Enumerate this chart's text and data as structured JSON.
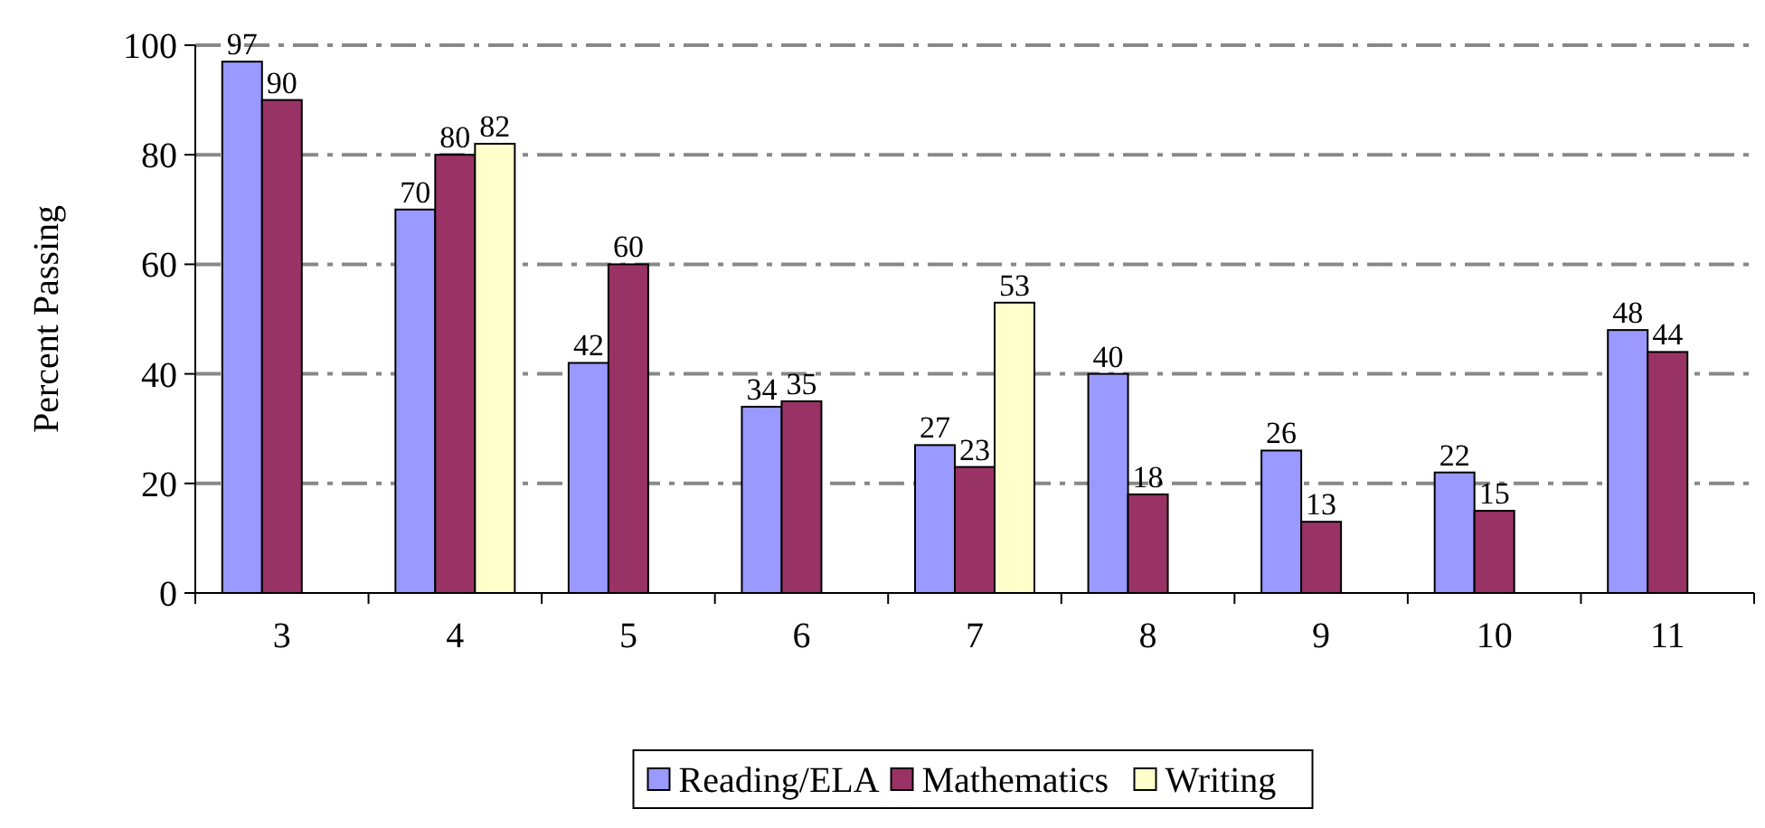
{
  "chart_data": {
    "type": "bar",
    "ylabel": "Percent Passing",
    "categories": [
      "3",
      "4",
      "5",
      "6",
      "7",
      "8",
      "9",
      "10",
      "11"
    ],
    "series": [
      {
        "name": "Reading/ELA",
        "color": "#9999ff",
        "values": [
          97,
          70,
          42,
          34,
          27,
          40,
          26,
          22,
          48
        ]
      },
      {
        "name": "Mathematics",
        "color": "#993366",
        "values": [
          90,
          80,
          60,
          35,
          23,
          18,
          13,
          15,
          44
        ]
      },
      {
        "name": "Writing",
        "color": "#ffffcc",
        "values": [
          null,
          82,
          null,
          null,
          53,
          null,
          null,
          null,
          null
        ]
      }
    ],
    "ylim": [
      0,
      100
    ],
    "yticks": [
      0,
      20,
      40,
      60,
      80,
      100
    ],
    "grid": "y",
    "data_labels": true,
    "legend": "bottom"
  }
}
